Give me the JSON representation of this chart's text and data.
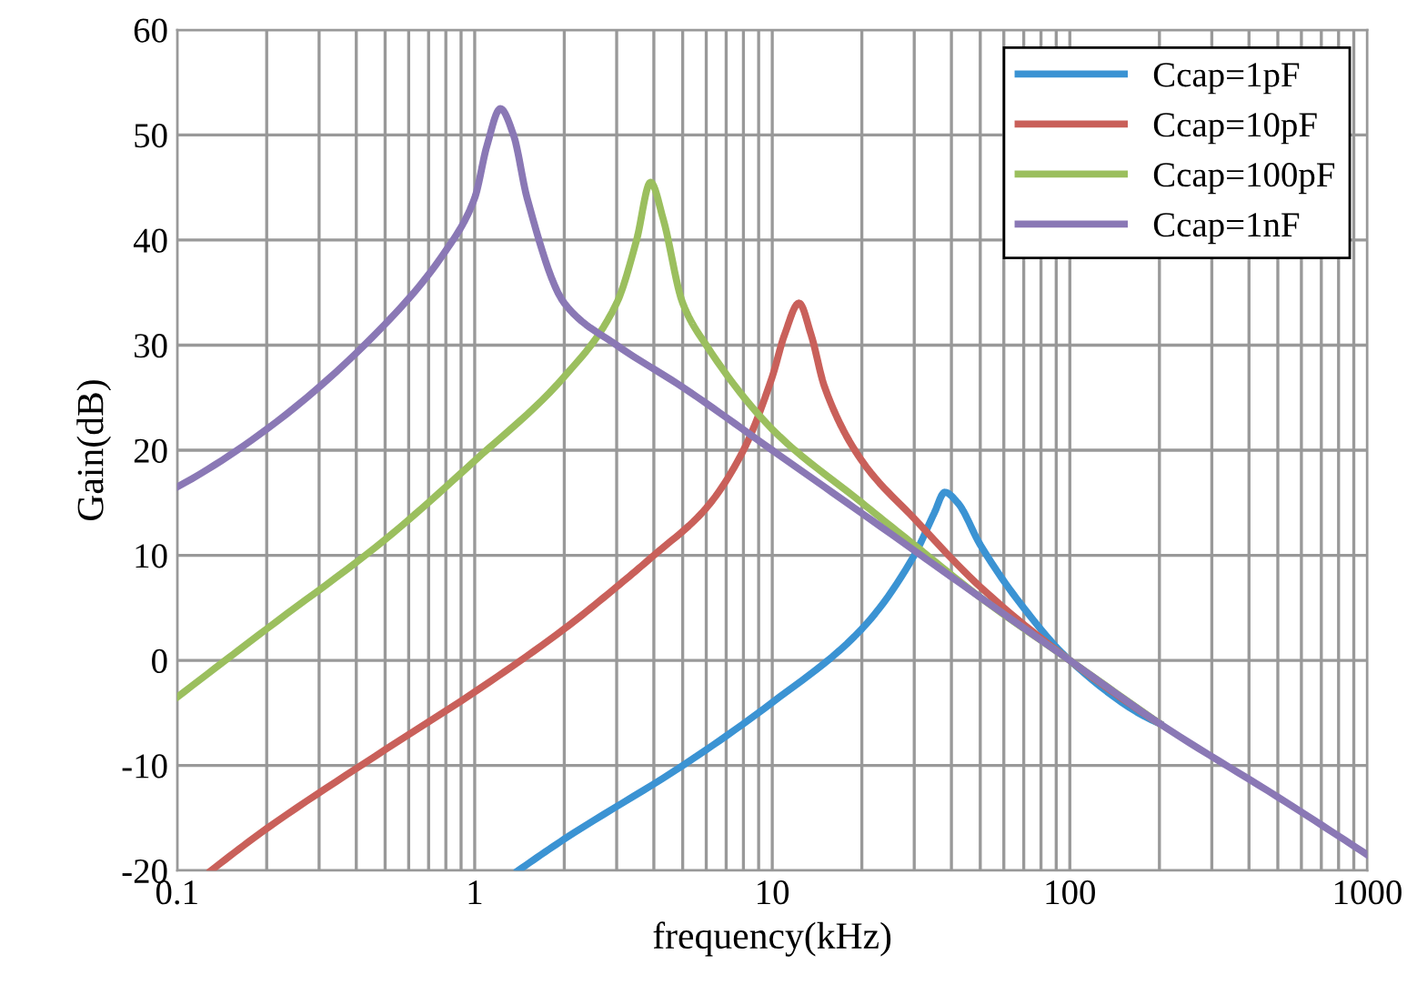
{
  "chart_data": {
    "type": "line",
    "xlabel": "frequency(kHz)",
    "ylabel": "Gain(dB)",
    "log": "x",
    "grid": true,
    "legend": "top right",
    "marker": "none",
    "line_style": "solid",
    "xlim": [
      0.1,
      1000
    ],
    "xticks": [
      0.1,
      1,
      10,
      100,
      1000
    ],
    "ylim": [
      -20,
      60
    ],
    "yticks": [
      -20,
      -10,
      0,
      10,
      20,
      30,
      40,
      50,
      60
    ],
    "series": [
      {
        "name": "Ccap=1pF",
        "color": "#3b93d3",
        "x": [
          1.4,
          2,
          5,
          10,
          20,
          30,
          35,
          38,
          42,
          50,
          70,
          100,
          200
        ],
        "values": [
          -20,
          -17,
          -10,
          -4,
          3,
          10,
          14,
          16,
          15,
          11,
          5,
          0,
          -6
        ]
      },
      {
        "name": "Ccap=10pF",
        "color": "#c9605a",
        "x": [
          0.13,
          0.2,
          0.5,
          1,
          2,
          3,
          4,
          6,
          8,
          10,
          11,
          12.3,
          13.5,
          15,
          20,
          30,
          50,
          100,
          200
        ],
        "values": [
          -20,
          -16,
          -8.5,
          -3,
          3,
          7,
          10,
          14.5,
          20,
          27,
          31,
          34,
          31,
          26,
          19,
          13.5,
          7,
          0,
          -6
        ]
      },
      {
        "name": "Ccap=100pF",
        "color": "#9bbf5e",
        "x": [
          0.1,
          0.2,
          0.5,
          1,
          2,
          3,
          3.5,
          3.9,
          4.3,
          5,
          6,
          10,
          20,
          30,
          50,
          100,
          200
        ],
        "values": [
          -3.5,
          3,
          11.5,
          19,
          27,
          34,
          40,
          45.5,
          42,
          34,
          30,
          22,
          15,
          11,
          6,
          0,
          -6
        ]
      },
      {
        "name": "Ccap=1nF",
        "color": "#8a78b5",
        "x": [
          0.1,
          0.2,
          0.5,
          0.8,
          1,
          1.1,
          1.22,
          1.35,
          1.5,
          2,
          3,
          5,
          10,
          20,
          50,
          100,
          200,
          500,
          1000
        ],
        "values": [
          16.5,
          22,
          32,
          39,
          44,
          49,
          52.5,
          50,
          44,
          34,
          30,
          26,
          20,
          14,
          6,
          0,
          -6,
          -13,
          -18.5
        ]
      }
    ]
  }
}
